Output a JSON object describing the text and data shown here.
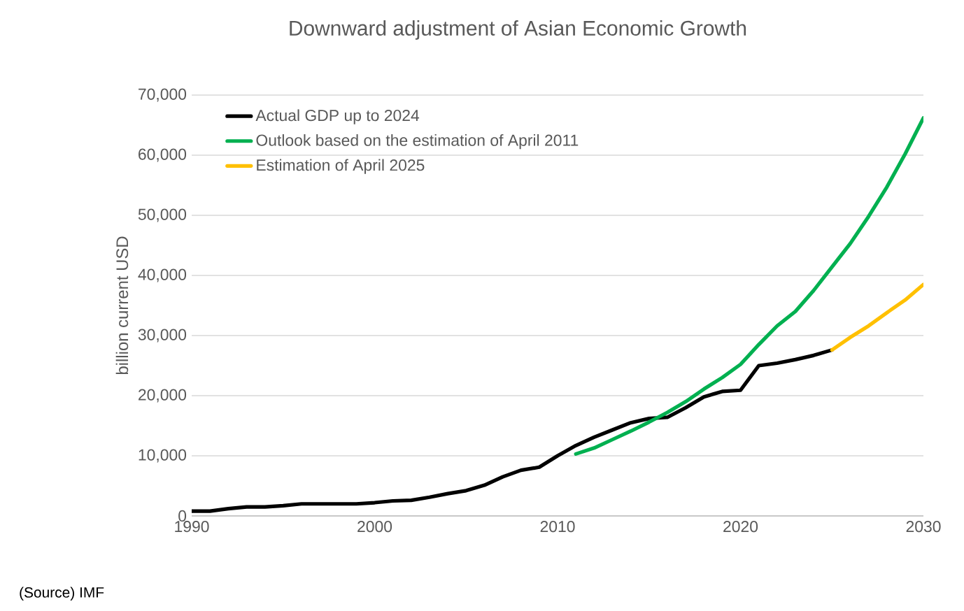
{
  "chart_data": {
    "type": "line",
    "title": "Downward adjustment of Asian Economic Growth",
    "ylabel": "billion current USD",
    "annotations": [
      "(Source) IMF"
    ],
    "xlim": [
      1990,
      2030
    ],
    "xticks": [
      1990,
      2000,
      2010,
      2020,
      2030
    ],
    "ylim": [
      0,
      70000
    ],
    "yticks": [
      {
        "value": 0,
        "label": "0"
      },
      {
        "value": 10000,
        "label": "10,000"
      },
      {
        "value": 20000,
        "label": "20,000"
      },
      {
        "value": 30000,
        "label": "30,000"
      },
      {
        "value": 40000,
        "label": "40,000"
      },
      {
        "value": 50000,
        "label": "50,000"
      },
      {
        "value": 60000,
        "label": "60,000"
      },
      {
        "value": 70000,
        "label": "70,000"
      }
    ],
    "grid": "y",
    "legend": "top left",
    "marker": "none",
    "line_style": "solid",
    "series": [
      {
        "name": "Actual GDP up to 2024",
        "color": "#000000",
        "x": [
          1990,
          1991,
          1992,
          1993,
          1994,
          1995,
          1996,
          1997,
          1998,
          1999,
          2000,
          2001,
          2002,
          2003,
          2004,
          2005,
          2006,
          2007,
          2008,
          2009,
          2010,
          2011,
          2012,
          2013,
          2014,
          2015,
          2016,
          2017,
          2018,
          2019,
          2020,
          2021,
          2022,
          2023,
          2024,
          2025
        ],
        "values": [
          800,
          800,
          1200,
          1500,
          1500,
          1700,
          2000,
          2000,
          2000,
          2000,
          2200,
          2500,
          2600,
          3100,
          3700,
          4200,
          5100,
          6500,
          7600,
          8100,
          10000,
          11700,
          13100,
          14300,
          15500,
          16200,
          16400,
          18000,
          19800,
          20700,
          20900,
          25000,
          25400,
          26000,
          26700,
          27600
        ]
      },
      {
        "name": "Outlook based on the estimation of April 2011",
        "color": "#00b050",
        "x": [
          2011,
          2012,
          2013,
          2014,
          2015,
          2016,
          2017,
          2018,
          2019,
          2020,
          2021,
          2022,
          2023,
          2024,
          2025,
          2026,
          2027,
          2028,
          2029,
          2030
        ],
        "values": [
          10300,
          11300,
          12700,
          14100,
          15600,
          17200,
          19000,
          21100,
          23000,
          25200,
          28500,
          31600,
          34000,
          37500,
          41400,
          45300,
          49800,
          54700,
          60200,
          66200
        ]
      },
      {
        "name": "Estimation of April 2025",
        "color": "#ffc000",
        "x": [
          2025,
          2026,
          2027,
          2028,
          2029,
          2030
        ],
        "values": [
          27600,
          29700,
          31600,
          33800,
          35900,
          38500
        ]
      }
    ]
  }
}
